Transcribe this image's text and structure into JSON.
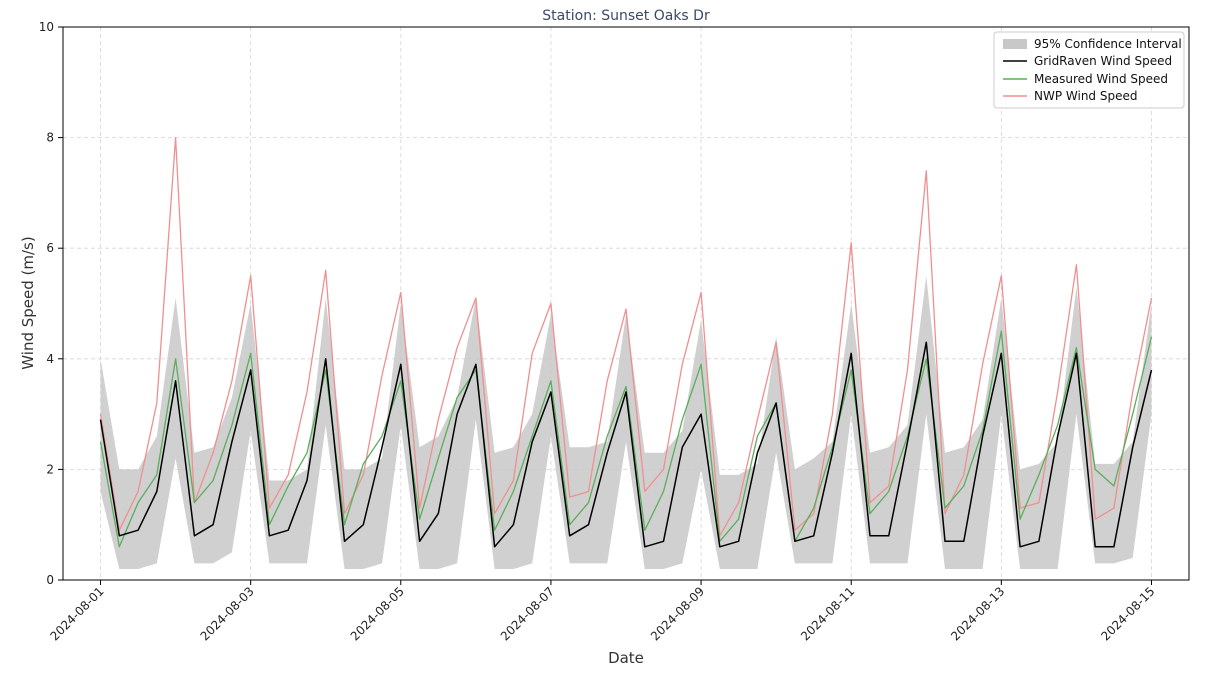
{
  "chart_data": {
    "type": "line",
    "title": "Station: Sunset Oaks Dr",
    "xlabel": "Date",
    "ylabel": "Wind Speed (m/s)",
    "xlim": [
      "2024-07-31T12:00",
      "2024-08-15T12:00"
    ],
    "ylim": [
      0,
      10
    ],
    "x_ticks": [
      "2024-08-01",
      "2024-08-03",
      "2024-08-05",
      "2024-08-07",
      "2024-08-09",
      "2024-08-11",
      "2024-08-13",
      "2024-08-15"
    ],
    "y_ticks": [
      "0",
      "2",
      "4",
      "6",
      "8",
      "10"
    ],
    "grid": true,
    "legend_position": "top-right",
    "colors": {
      "band": "#c8c8c8",
      "gridraven": "#000000",
      "measured": "#5cad5c",
      "nwp": "#f08f8f"
    },
    "x": [
      "2024-08-01T00:00",
      "2024-08-01T06:00",
      "2024-08-01T12:00",
      "2024-08-01T18:00",
      "2024-08-02T00:00",
      "2024-08-02T06:00",
      "2024-08-02T12:00",
      "2024-08-02T18:00",
      "2024-08-03T00:00",
      "2024-08-03T06:00",
      "2024-08-03T12:00",
      "2024-08-03T18:00",
      "2024-08-04T00:00",
      "2024-08-04T06:00",
      "2024-08-04T12:00",
      "2024-08-04T18:00",
      "2024-08-05T00:00",
      "2024-08-05T06:00",
      "2024-08-05T12:00",
      "2024-08-05T18:00",
      "2024-08-06T00:00",
      "2024-08-06T06:00",
      "2024-08-06T12:00",
      "2024-08-06T18:00",
      "2024-08-07T00:00",
      "2024-08-07T06:00",
      "2024-08-07T12:00",
      "2024-08-07T18:00",
      "2024-08-08T00:00",
      "2024-08-08T06:00",
      "2024-08-08T12:00",
      "2024-08-08T18:00",
      "2024-08-09T00:00",
      "2024-08-09T06:00",
      "2024-08-09T12:00",
      "2024-08-09T18:00",
      "2024-08-10T00:00",
      "2024-08-10T06:00",
      "2024-08-10T12:00",
      "2024-08-10T18:00",
      "2024-08-11T00:00",
      "2024-08-11T06:00",
      "2024-08-11T12:00",
      "2024-08-11T18:00",
      "2024-08-12T00:00",
      "2024-08-12T06:00",
      "2024-08-12T12:00",
      "2024-08-12T18:00",
      "2024-08-13T00:00",
      "2024-08-13T06:00",
      "2024-08-13T12:00",
      "2024-08-13T18:00",
      "2024-08-14T00:00",
      "2024-08-14T06:00",
      "2024-08-14T12:00",
      "2024-08-14T18:00",
      "2024-08-15T00:00"
    ],
    "series": [
      {
        "name": "95% Confidence Interval",
        "type": "band",
        "lower": [
          1.6,
          0.2,
          0.2,
          0.3,
          2.2,
          0.3,
          0.3,
          0.5,
          2.7,
          0.3,
          0.3,
          0.3,
          2.8,
          0.2,
          0.2,
          0.3,
          2.8,
          0.2,
          0.2,
          0.3,
          2.9,
          0.2,
          0.2,
          0.3,
          2.6,
          0.3,
          0.3,
          0.3,
          2.5,
          0.2,
          0.2,
          0.3,
          2.0,
          0.2,
          0.2,
          0.2,
          2.3,
          0.3,
          0.3,
          0.3,
          3.0,
          0.3,
          0.3,
          0.3,
          3.0,
          0.2,
          0.2,
          0.2,
          3.0,
          0.2,
          0.2,
          0.2,
          3.0,
          0.3,
          0.3,
          0.4,
          3.0
        ],
        "upper": [
          4.0,
          2.0,
          2.0,
          2.6,
          5.1,
          2.3,
          2.4,
          3.3,
          5.0,
          1.8,
          1.8,
          2.0,
          5.1,
          2.0,
          2.0,
          2.2,
          5.0,
          2.4,
          2.6,
          3.3,
          5.1,
          2.3,
          2.4,
          3.0,
          4.8,
          2.4,
          2.4,
          2.5,
          4.8,
          2.3,
          2.3,
          2.7,
          4.7,
          1.9,
          1.9,
          2.1,
          4.4,
          2.0,
          2.2,
          2.5,
          5.0,
          2.3,
          2.4,
          2.8,
          5.5,
          2.3,
          2.4,
          2.9,
          5.1,
          2.0,
          2.1,
          2.5,
          5.3,
          2.1,
          2.1,
          2.5,
          5.0
        ]
      },
      {
        "name": "GridRaven Wind Speed",
        "values": [
          2.9,
          0.8,
          0.9,
          1.6,
          3.6,
          0.8,
          1.0,
          2.5,
          3.8,
          0.8,
          0.9,
          1.8,
          4.0,
          0.7,
          1.0,
          2.4,
          3.9,
          0.7,
          1.2,
          3.0,
          3.9,
          0.6,
          1.0,
          2.5,
          3.4,
          0.8,
          1.0,
          2.3,
          3.4,
          0.6,
          0.7,
          2.4,
          3.0,
          0.6,
          0.7,
          2.3,
          3.2,
          0.7,
          0.8,
          2.3,
          4.1,
          0.8,
          0.8,
          2.5,
          4.3,
          0.7,
          0.7,
          2.6,
          4.1,
          0.6,
          0.7,
          2.6,
          4.1,
          0.6,
          0.6,
          2.4,
          3.8
        ]
      },
      {
        "name": "Measured Wind Speed",
        "values": [
          2.5,
          0.6,
          1.4,
          1.9,
          4.0,
          1.4,
          1.8,
          2.8,
          4.1,
          1.0,
          1.7,
          2.3,
          3.8,
          1.0,
          2.1,
          2.6,
          3.6,
          1.1,
          2.2,
          3.3,
          3.8,
          0.9,
          1.6,
          2.6,
          3.6,
          1.0,
          1.4,
          2.6,
          3.5,
          0.9,
          1.6,
          2.9,
          3.9,
          0.7,
          1.1,
          2.6,
          3.2,
          0.7,
          1.3,
          2.4,
          3.8,
          1.2,
          1.6,
          2.6,
          4.0,
          1.3,
          1.7,
          2.7,
          4.5,
          1.1,
          1.9,
          2.8,
          4.2,
          2.0,
          1.7,
          3.0,
          4.4
        ]
      },
      {
        "name": "NWP Wind Speed",
        "values": [
          3.0,
          0.9,
          1.6,
          3.2,
          8.0,
          1.4,
          2.3,
          3.6,
          5.5,
          1.3,
          1.9,
          3.4,
          5.6,
          1.2,
          1.9,
          3.7,
          5.2,
          1.3,
          2.9,
          4.2,
          5.1,
          1.2,
          1.8,
          4.1,
          5.0,
          1.5,
          1.6,
          3.6,
          4.9,
          1.6,
          2.0,
          3.9,
          5.2,
          0.8,
          1.4,
          2.9,
          4.3,
          0.9,
          1.2,
          3.0,
          6.1,
          1.4,
          1.7,
          3.8,
          7.4,
          1.2,
          1.9,
          3.9,
          5.5,
          1.3,
          1.4,
          3.4,
          5.7,
          1.1,
          1.3,
          3.4,
          5.1
        ]
      }
    ]
  }
}
